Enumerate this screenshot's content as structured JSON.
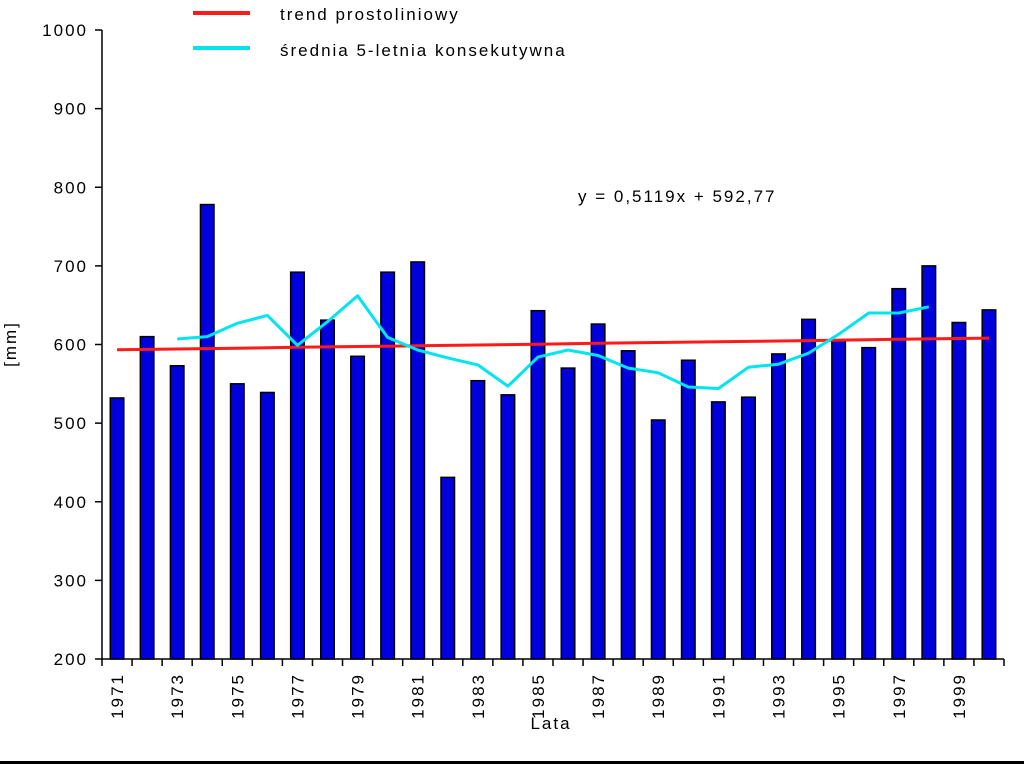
{
  "chart_data": {
    "type": "bar",
    "title": "",
    "xlabel": "Lata",
    "ylabel": "[mm]",
    "ylim": [
      200,
      1000
    ],
    "yticks": [
      200,
      300,
      400,
      500,
      600,
      700,
      800,
      900,
      1000
    ],
    "grid": false,
    "legend_position": "top",
    "equation": "y = 0,5119x + 592,77",
    "x_tick_labels": [
      "1971",
      "1973",
      "1975",
      "1977",
      "1979",
      "1981",
      "1983",
      "1985",
      "1987",
      "1989",
      "1991",
      "1993",
      "1995",
      "1997",
      "1999"
    ],
    "categories": [
      "1971",
      "1972",
      "1973",
      "1974",
      "1975",
      "1976",
      "1977",
      "1978",
      "1979",
      "1980",
      "1981",
      "1982",
      "1983",
      "1984",
      "1985",
      "1986",
      "1987",
      "1988",
      "1989",
      "1990",
      "1991",
      "1992",
      "1993",
      "1994",
      "1995",
      "1996",
      "1997",
      "1998",
      "1999",
      "2000"
    ],
    "values": [
      532,
      610,
      573,
      778,
      550,
      539,
      692,
      631,
      585,
      692,
      705,
      431,
      554,
      536,
      643,
      570,
      626,
      592,
      504,
      580,
      527,
      533,
      588,
      632,
      605,
      596,
      671,
      700,
      628,
      644
    ],
    "series": [
      {
        "type": "line",
        "name": "trend prostoliniowy",
        "color": "#ff1a1a",
        "values": [
          593.3,
          593.8,
          594.3,
          594.8,
          595.3,
          595.8,
          596.4,
          596.9,
          597.4,
          597.9,
          598.4,
          598.9,
          599.4,
          599.9,
          600.4,
          601.0,
          601.5,
          602.0,
          602.5,
          603.0,
          603.5,
          604.0,
          604.5,
          605.0,
          605.6,
          606.1,
          606.6,
          607.1,
          607.6,
          608.1
        ]
      },
      {
        "type": "line",
        "name": "średnia 5-letnia konsekutywna",
        "color": "#00e5ee",
        "values": [
          null,
          null,
          607,
          610,
          627,
          637,
          599,
          629,
          662,
          609,
          593,
          583,
          574,
          547,
          584,
          593,
          586,
          570,
          564,
          546,
          544,
          571,
          575,
          589,
          613,
          640,
          640,
          648,
          null,
          null
        ]
      }
    ],
    "colors": {
      "bar": "#0000dd",
      "bar_border": "#000000"
    }
  }
}
